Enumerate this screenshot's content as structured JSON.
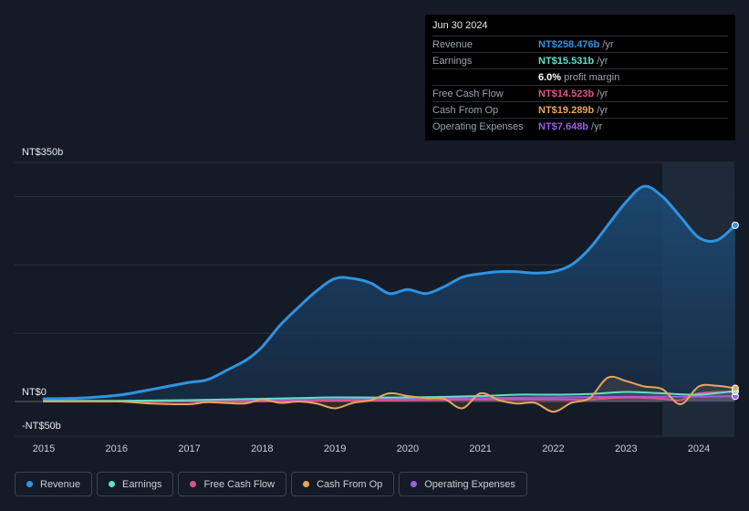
{
  "tooltip": {
    "date": "Jun 30 2024",
    "rows": [
      {
        "label": "Revenue",
        "value": "NT$258.476b",
        "unit": "/yr",
        "color": "#2f93e0"
      },
      {
        "label": "Earnings",
        "value": "NT$15.531b",
        "unit": "/yr",
        "color": "#5fe0c8"
      },
      {
        "label": "",
        "value": "6.0%",
        "unit": "profit margin",
        "color": "#ffffff"
      },
      {
        "label": "Free Cash Flow",
        "value": "NT$14.523b",
        "unit": "/yr",
        "color": "#e0528a"
      },
      {
        "label": "Cash From Op",
        "value": "NT$19.289b",
        "unit": "/yr",
        "color": "#e8a55a"
      },
      {
        "label": "Operating Expenses",
        "value": "NT$7.648b",
        "unit": "/yr",
        "color": "#9b5de5"
      }
    ]
  },
  "legend": [
    {
      "label": "Revenue",
      "color": "#2f93e0"
    },
    {
      "label": "Earnings",
      "color": "#5fe0c8"
    },
    {
      "label": "Free Cash Flow",
      "color": "#e0528a"
    },
    {
      "label": "Cash From Op",
      "color": "#e8a55a"
    },
    {
      "label": "Operating Expenses",
      "color": "#9b5de5"
    }
  ],
  "chart_data": {
    "type": "area",
    "y_top_label": "NT$350b",
    "y_zero_label": "NT$0",
    "y_bottom_label": "-NT$50b",
    "ylim": [
      -50,
      350
    ],
    "xlim": [
      2014.8,
      2024.5
    ],
    "x_ticks": [
      "2015",
      "2016",
      "2017",
      "2018",
      "2019",
      "2020",
      "2021",
      "2022",
      "2023",
      "2024"
    ],
    "highlight_from": 2023.5,
    "series": [
      {
        "name": "Revenue",
        "color": "#2f93e0",
        "fill": true,
        "points": [
          [
            2015.0,
            4
          ],
          [
            2015.5,
            5
          ],
          [
            2016.0,
            9
          ],
          [
            2016.3,
            14
          ],
          [
            2016.7,
            22
          ],
          [
            2017.0,
            28
          ],
          [
            2017.25,
            32
          ],
          [
            2017.5,
            45
          ],
          [
            2017.8,
            62
          ],
          [
            2018.0,
            80
          ],
          [
            2018.25,
            112
          ],
          [
            2018.5,
            138
          ],
          [
            2018.75,
            162
          ],
          [
            2019.0,
            180
          ],
          [
            2019.25,
            180
          ],
          [
            2019.5,
            173
          ],
          [
            2019.75,
            158
          ],
          [
            2020.0,
            164
          ],
          [
            2020.25,
            158
          ],
          [
            2020.5,
            168
          ],
          [
            2020.75,
            182
          ],
          [
            2021.0,
            187
          ],
          [
            2021.25,
            190
          ],
          [
            2021.5,
            190
          ],
          [
            2021.75,
            188
          ],
          [
            2022.0,
            190
          ],
          [
            2022.25,
            200
          ],
          [
            2022.5,
            224
          ],
          [
            2022.75,
            258
          ],
          [
            2023.0,
            292
          ],
          [
            2023.25,
            315
          ],
          [
            2023.5,
            300
          ],
          [
            2023.75,
            270
          ],
          [
            2024.0,
            240
          ],
          [
            2024.25,
            236
          ],
          [
            2024.5,
            258
          ]
        ]
      },
      {
        "name": "Earnings",
        "color": "#5fe0c8",
        "fill": false,
        "points": [
          [
            2015.0,
            1
          ],
          [
            2016.0,
            1
          ],
          [
            2017.0,
            2
          ],
          [
            2018.0,
            4
          ],
          [
            2018.5,
            5
          ],
          [
            2019.0,
            6
          ],
          [
            2020.0,
            6
          ],
          [
            2021.0,
            8
          ],
          [
            2021.5,
            10
          ],
          [
            2022.0,
            10
          ],
          [
            2022.5,
            11
          ],
          [
            2023.0,
            14
          ],
          [
            2023.5,
            12
          ],
          [
            2024.0,
            10
          ],
          [
            2024.5,
            15.5
          ]
        ]
      },
      {
        "name": "Free Cash Flow",
        "color": "#e0528a",
        "fill": false,
        "points": [
          [
            2015.0,
            0
          ],
          [
            2016.0,
            0
          ],
          [
            2017.0,
            0
          ],
          [
            2018.0,
            0
          ],
          [
            2019.0,
            1
          ],
          [
            2020.0,
            2
          ],
          [
            2021.0,
            3
          ],
          [
            2022.0,
            3
          ],
          [
            2022.5,
            3
          ],
          [
            2023.0,
            6
          ],
          [
            2023.5,
            4
          ],
          [
            2023.75,
            2
          ],
          [
            2024.0,
            12
          ],
          [
            2024.5,
            14.5
          ]
        ]
      },
      {
        "name": "Cash From Op",
        "color": "#e8a55a",
        "fill": false,
        "points": [
          [
            2015.0,
            0
          ],
          [
            2016.0,
            0
          ],
          [
            2016.5,
            -3
          ],
          [
            2017.0,
            -4
          ],
          [
            2017.25,
            -1
          ],
          [
            2017.75,
            -3
          ],
          [
            2018.0,
            3
          ],
          [
            2018.25,
            -2
          ],
          [
            2018.5,
            0
          ],
          [
            2018.75,
            -3
          ],
          [
            2019.0,
            -10
          ],
          [
            2019.25,
            -2
          ],
          [
            2019.5,
            2
          ],
          [
            2019.75,
            12
          ],
          [
            2020.0,
            8
          ],
          [
            2020.25,
            5
          ],
          [
            2020.5,
            4
          ],
          [
            2020.75,
            -10
          ],
          [
            2021.0,
            12
          ],
          [
            2021.25,
            2
          ],
          [
            2021.5,
            -3
          ],
          [
            2021.75,
            -2
          ],
          [
            2022.0,
            -15
          ],
          [
            2022.25,
            -2
          ],
          [
            2022.5,
            5
          ],
          [
            2022.75,
            35
          ],
          [
            2023.0,
            30
          ],
          [
            2023.25,
            22
          ],
          [
            2023.5,
            18
          ],
          [
            2023.75,
            -4
          ],
          [
            2024.0,
            22
          ],
          [
            2024.25,
            23
          ],
          [
            2024.5,
            19.3
          ]
        ]
      },
      {
        "name": "Operating Expenses",
        "color": "#9b5de5",
        "fill": false,
        "points": [
          [
            2015.0,
            0
          ],
          [
            2016.0,
            0.5
          ],
          [
            2017.0,
            1
          ],
          [
            2018.0,
            2
          ],
          [
            2019.0,
            3
          ],
          [
            2020.0,
            4
          ],
          [
            2021.0,
            5
          ],
          [
            2022.0,
            6
          ],
          [
            2023.0,
            7
          ],
          [
            2023.75,
            7
          ],
          [
            2024.5,
            7.6
          ]
        ]
      }
    ]
  }
}
